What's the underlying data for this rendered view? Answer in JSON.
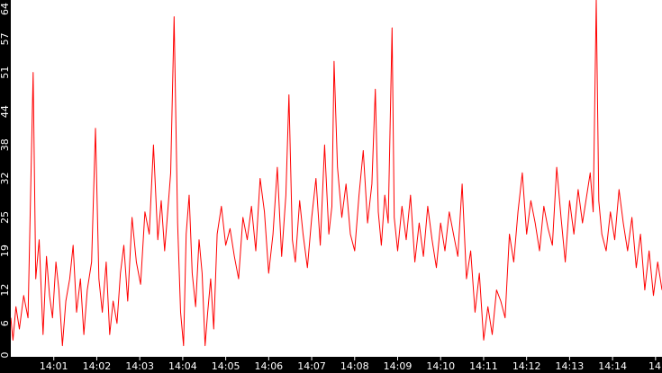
{
  "chart_data": {
    "type": "line",
    "title": "",
    "xlabel": "",
    "ylabel": "",
    "ylim": [
      0,
      64
    ],
    "y_ticks": [
      0,
      6,
      12,
      19,
      25,
      32,
      38,
      44,
      51,
      57,
      64
    ],
    "x_ticks": [
      "14:01",
      "14:02",
      "14:03",
      "14:04",
      "14:05",
      "14:06",
      "14:07",
      "14:08",
      "14:09",
      "14:10",
      "14:11",
      "14:12",
      "14:13",
      "14:14",
      "14"
    ],
    "x_range_minutes": [
      0,
      15.15
    ],
    "grid": false,
    "legend": "none",
    "colors": {
      "line": "#ff0000",
      "axis_band": "#000000",
      "tick_text": "#ffffff",
      "background": "#ffffff"
    },
    "series": [
      {
        "values": [
          [
            0.0,
            7
          ],
          [
            0.05,
            3
          ],
          [
            0.12,
            9
          ],
          [
            0.2,
            5
          ],
          [
            0.3,
            11
          ],
          [
            0.4,
            7
          ],
          [
            0.52,
            51
          ],
          [
            0.58,
            14
          ],
          [
            0.66,
            21
          ],
          [
            0.75,
            4
          ],
          [
            0.83,
            18
          ],
          [
            0.9,
            11
          ],
          [
            0.97,
            7
          ],
          [
            1.05,
            17
          ],
          [
            1.12,
            12
          ],
          [
            1.2,
            2
          ],
          [
            1.28,
            10
          ],
          [
            1.37,
            14
          ],
          [
            1.45,
            20
          ],
          [
            1.53,
            8
          ],
          [
            1.62,
            14
          ],
          [
            1.7,
            4
          ],
          [
            1.78,
            12
          ],
          [
            1.88,
            17
          ],
          [
            1.97,
            41
          ],
          [
            2.05,
            14
          ],
          [
            2.13,
            8
          ],
          [
            2.22,
            17
          ],
          [
            2.3,
            4
          ],
          [
            2.38,
            10
          ],
          [
            2.47,
            6
          ],
          [
            2.55,
            15
          ],
          [
            2.63,
            20
          ],
          [
            2.72,
            10
          ],
          [
            2.82,
            25
          ],
          [
            2.92,
            17
          ],
          [
            3.02,
            13
          ],
          [
            3.12,
            26
          ],
          [
            3.22,
            22
          ],
          [
            3.32,
            38
          ],
          [
            3.42,
            21
          ],
          [
            3.5,
            28
          ],
          [
            3.58,
            19
          ],
          [
            3.65,
            26
          ],
          [
            3.72,
            33
          ],
          [
            3.8,
            61
          ],
          [
            3.88,
            24
          ],
          [
            3.95,
            8
          ],
          [
            4.02,
            2
          ],
          [
            4.08,
            22
          ],
          [
            4.15,
            29
          ],
          [
            4.22,
            15
          ],
          [
            4.3,
            9
          ],
          [
            4.38,
            21
          ],
          [
            4.45,
            15
          ],
          [
            4.52,
            2
          ],
          [
            4.58,
            8
          ],
          [
            4.65,
            14
          ],
          [
            4.72,
            5
          ],
          [
            4.8,
            22
          ],
          [
            4.9,
            27
          ],
          [
            5.0,
            20
          ],
          [
            5.1,
            23
          ],
          [
            5.2,
            18
          ],
          [
            5.3,
            14
          ],
          [
            5.4,
            25
          ],
          [
            5.5,
            21
          ],
          [
            5.6,
            27
          ],
          [
            5.7,
            19
          ],
          [
            5.8,
            32
          ],
          [
            5.9,
            26
          ],
          [
            6.0,
            15
          ],
          [
            6.1,
            22
          ],
          [
            6.2,
            34
          ],
          [
            6.3,
            18
          ],
          [
            6.4,
            29
          ],
          [
            6.47,
            47
          ],
          [
            6.55,
            21
          ],
          [
            6.62,
            17
          ],
          [
            6.72,
            28
          ],
          [
            6.8,
            22
          ],
          [
            6.9,
            16
          ],
          [
            7.0,
            25
          ],
          [
            7.1,
            32
          ],
          [
            7.2,
            20
          ],
          [
            7.3,
            38
          ],
          [
            7.4,
            22
          ],
          [
            7.47,
            27
          ],
          [
            7.52,
            53
          ],
          [
            7.6,
            34
          ],
          [
            7.7,
            25
          ],
          [
            7.8,
            31
          ],
          [
            7.9,
            22
          ],
          [
            8.0,
            19
          ],
          [
            8.1,
            29
          ],
          [
            8.2,
            37
          ],
          [
            8.3,
            24
          ],
          [
            8.4,
            31
          ],
          [
            8.48,
            48
          ],
          [
            8.55,
            26
          ],
          [
            8.62,
            20
          ],
          [
            8.7,
            29
          ],
          [
            8.78,
            24
          ],
          [
            8.87,
            59
          ],
          [
            8.92,
            25
          ],
          [
            9.0,
            19
          ],
          [
            9.1,
            27
          ],
          [
            9.2,
            21
          ],
          [
            9.3,
            29
          ],
          [
            9.4,
            17
          ],
          [
            9.5,
            24
          ],
          [
            9.6,
            18
          ],
          [
            9.7,
            27
          ],
          [
            9.8,
            21
          ],
          [
            9.9,
            16
          ],
          [
            10.0,
            24
          ],
          [
            10.1,
            19
          ],
          [
            10.2,
            26
          ],
          [
            10.3,
            22
          ],
          [
            10.4,
            18
          ],
          [
            10.5,
            31
          ],
          [
            10.6,
            14
          ],
          [
            10.7,
            19
          ],
          [
            10.8,
            8
          ],
          [
            10.9,
            15
          ],
          [
            11.0,
            3
          ],
          [
            11.1,
            9
          ],
          [
            11.2,
            4
          ],
          [
            11.3,
            12
          ],
          [
            11.4,
            10
          ],
          [
            11.5,
            7
          ],
          [
            11.6,
            22
          ],
          [
            11.7,
            17
          ],
          [
            11.8,
            26
          ],
          [
            11.9,
            33
          ],
          [
            12.0,
            22
          ],
          [
            12.1,
            28
          ],
          [
            12.2,
            24
          ],
          [
            12.3,
            19
          ],
          [
            12.4,
            27
          ],
          [
            12.5,
            23
          ],
          [
            12.6,
            20
          ],
          [
            12.7,
            34
          ],
          [
            12.8,
            25
          ],
          [
            12.9,
            17
          ],
          [
            13.0,
            28
          ],
          [
            13.1,
            22
          ],
          [
            13.2,
            30
          ],
          [
            13.3,
            24
          ],
          [
            13.4,
            29
          ],
          [
            13.48,
            33
          ],
          [
            13.55,
            26
          ],
          [
            13.62,
            64
          ],
          [
            13.68,
            28
          ],
          [
            13.75,
            22
          ],
          [
            13.85,
            19
          ],
          [
            13.95,
            26
          ],
          [
            14.05,
            21
          ],
          [
            14.15,
            30
          ],
          [
            14.25,
            24
          ],
          [
            14.35,
            19
          ],
          [
            14.45,
            25
          ],
          [
            14.55,
            16
          ],
          [
            14.65,
            22
          ],
          [
            14.75,
            12
          ],
          [
            14.85,
            19
          ],
          [
            14.95,
            11
          ],
          [
            15.05,
            17
          ],
          [
            15.15,
            12
          ]
        ]
      }
    ]
  }
}
